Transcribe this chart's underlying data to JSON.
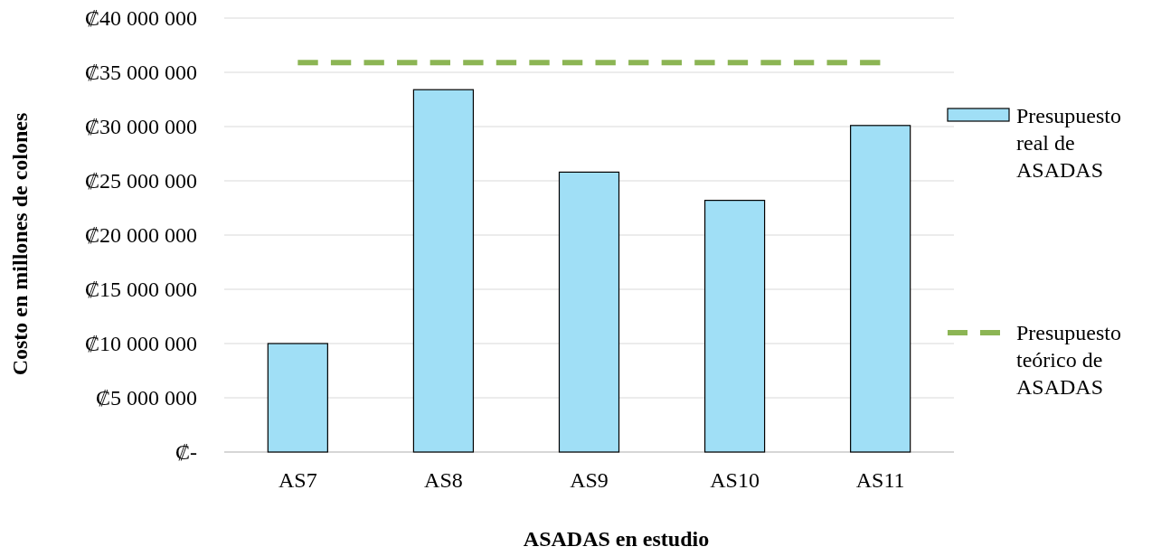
{
  "chart_data": {
    "type": "bar",
    "xlabel": "ASADAS en estudio",
    "ylabel": "Costo en millones de colones",
    "categories": [
      "AS7",
      "AS8",
      "AS9",
      "AS10",
      "AS11"
    ],
    "series": [
      {
        "name": "Presupuesto real de ASADAS",
        "color": "#a0dff6",
        "values": [
          10000000,
          33400000,
          25800000,
          23200000,
          30100000
        ]
      },
      {
        "name": "Presupuesto teórico de ASADAS",
        "type": "line",
        "color": "#8cb554",
        "line_style": "dashed",
        "marker": "none",
        "values": [
          35900000,
          35900000,
          35900000,
          35900000,
          35900000
        ]
      }
    ],
    "ylim": [
      0,
      40000000
    ],
    "yticks": [
      {
        "value": 0,
        "label": "₡-"
      },
      {
        "value": 5000000,
        "label": "₡5 000 000"
      },
      {
        "value": 10000000,
        "label": "₡10 000 000"
      },
      {
        "value": 15000000,
        "label": "₡15 000 000"
      },
      {
        "value": 20000000,
        "label": "₡20 000 000"
      },
      {
        "value": 25000000,
        "label": "₡25 000 000"
      },
      {
        "value": 30000000,
        "label": "₡30 000 000"
      },
      {
        "value": 35000000,
        "label": "₡35 000 000"
      },
      {
        "value": 40000000,
        "label": "₡40 000 000"
      }
    ],
    "grid": "y",
    "legend": "right"
  }
}
